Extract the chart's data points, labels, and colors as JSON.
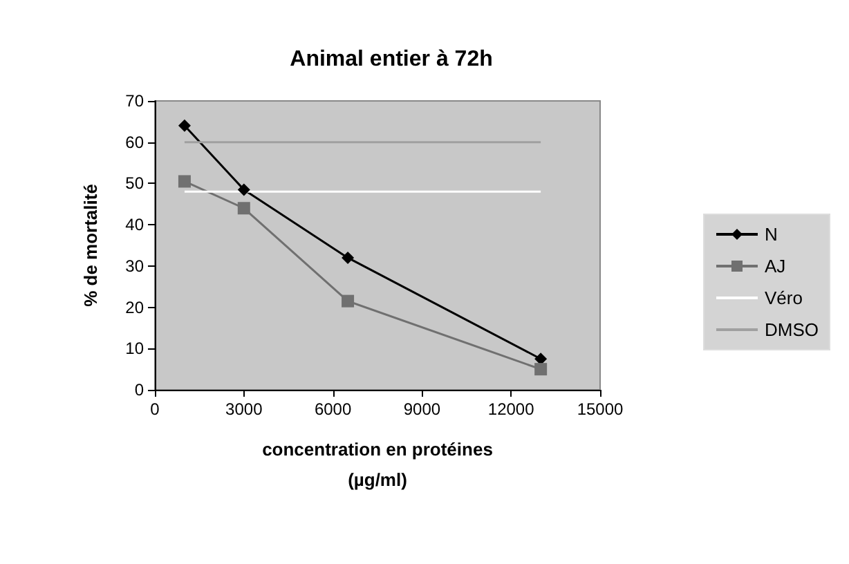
{
  "chart_data": {
    "type": "line",
    "title": "Animal entier à 72h",
    "xlabel": "concentration en protéines\n(µg/ml)",
    "ylabel": "% de mortalité",
    "xlim": [
      0,
      15000
    ],
    "xticks": [
      0,
      3000,
      6000,
      9000,
      12000,
      15000
    ],
    "ylim": [
      0,
      70
    ],
    "yticks": [
      0,
      10,
      20,
      30,
      40,
      50,
      60,
      70
    ],
    "grid": false,
    "legend": "right",
    "series": [
      {
        "name": "N",
        "color": "#000000",
        "marker": "diamond",
        "x": [
          1000,
          3000,
          6500,
          13000
        ],
        "values": [
          64,
          48.5,
          32,
          7.5
        ]
      },
      {
        "name": "AJ",
        "color": "#707070",
        "marker": "square",
        "x": [
          1000,
          3000,
          6500,
          13000
        ],
        "values": [
          50.5,
          44,
          21.5,
          5
        ]
      },
      {
        "name": "Véro",
        "color": "#ffffff",
        "marker": "none",
        "x": [
          1000,
          13000
        ],
        "values": [
          48,
          48
        ]
      },
      {
        "name": "DMSO",
        "color": "#a0a0a0",
        "marker": "none",
        "x": [
          1000,
          13000
        ],
        "values": [
          60,
          60
        ]
      }
    ]
  }
}
